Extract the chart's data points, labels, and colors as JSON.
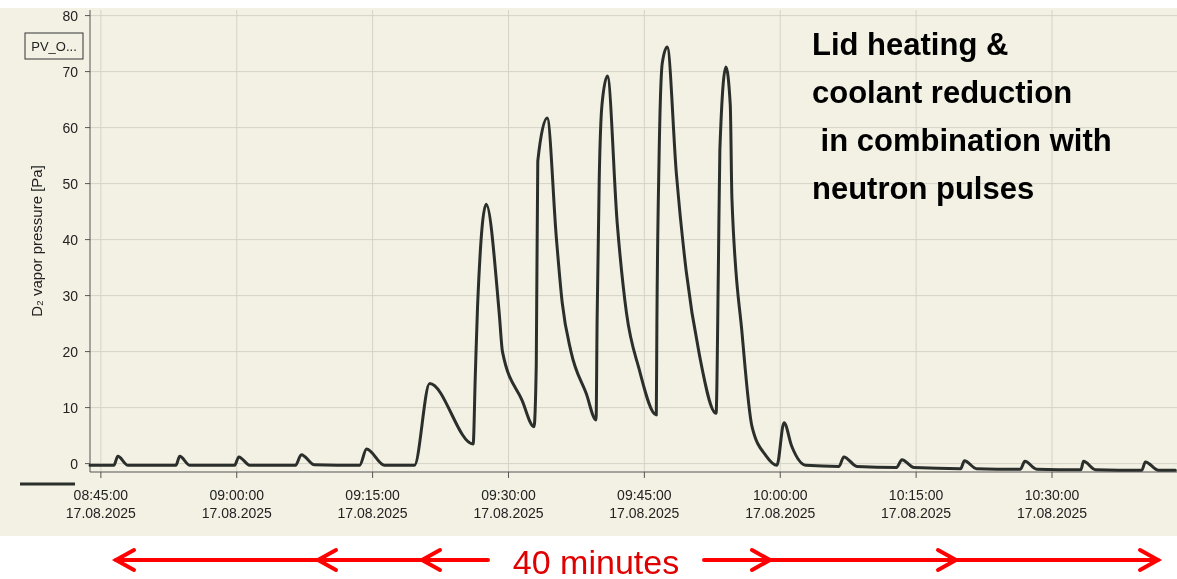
{
  "chart_data": {
    "type": "line",
    "ylabel": "D₂ vapor pressure [Pa]",
    "xlim": [
      "2025-08-17T08:43:48",
      "2025-08-17T10:43:48"
    ],
    "xticks": [
      {
        "value": "2025-08-17T08:45",
        "label": "08:45:00\n17.08.2025"
      },
      {
        "value": "2025-08-17T09:00",
        "label": "09:00:00\n17.08.2025"
      },
      {
        "value": "2025-08-17T09:15",
        "label": "09:15:00\n17.08.2025"
      },
      {
        "value": "2025-08-17T09:30",
        "label": "09:30:00\n17.08.2025"
      },
      {
        "value": "2025-08-17T09:45",
        "label": "09:45:00\n17.08.2025"
      },
      {
        "value": "2025-08-17T10:00",
        "label": "10:00:00\n17.08.2025"
      },
      {
        "value": "2025-08-17T10:15",
        "label": "10:15:00\n17.08.2025"
      },
      {
        "value": "2025-08-17T10:30",
        "label": "10:30:00\n17.08.2025"
      }
    ],
    "ylim": [
      -1.5,
      81
    ],
    "yticks": [
      0,
      10,
      20,
      30,
      40,
      50,
      60,
      70,
      80
    ],
    "grid": true,
    "legend": "top left",
    "line_style": "solid",
    "annotations": [
      "Lid heating &\ncoolant reduction\n in combination with\nneutron pulses",
      "40 minutes"
    ],
    "series": [
      {
        "name": "PV_O...",
        "color": "#2b2f2b",
        "x": [
          "2025-08-17T08:43:48",
          "2025-08-17T08:46:26",
          "2025-08-17T08:46:52",
          "2025-08-17T08:48:00",
          "2025-08-17T08:53:17",
          "2025-08-17T08:53:42",
          "2025-08-17T08:54:50",
          "2025-08-17T08:59:46",
          "2025-08-17T09:00:14",
          "2025-08-17T09:01:26",
          "2025-08-17T09:06:29",
          "2025-08-17T09:07:08",
          "2025-08-17T09:08:35",
          "2025-08-17T09:13:34",
          "2025-08-17T09:14:20",
          "2025-08-17T09:16:19",
          "2025-08-17T09:19:37",
          "2025-08-17T09:21:18",
          "2025-08-17T09:26:06",
          "2025-08-17T09:26:20",
          "2025-08-17T09:26:35",
          "2025-08-17T09:27:32",
          "2025-08-17T09:28:59",
          "2025-08-17T09:29:20",
          "2025-08-17T09:31:30",
          "2025-08-17T09:32:49",
          "2025-08-17T09:33:04",
          "2025-08-17T09:33:14",
          "2025-08-17T09:34:16",
          "2025-08-17T09:35:17",
          "2025-08-17T09:35:56",
          "2025-08-17T09:36:54",
          "2025-08-17T09:38:35",
          "2025-08-17T09:39:40",
          "2025-08-17T09:39:47",
          "2025-08-17T09:40:01",
          "2025-08-17T09:40:19",
          "2025-08-17T09:40:55",
          "2025-08-17T09:42:00",
          "2025-08-17T09:43:01",
          "2025-08-17T09:44:24",
          "2025-08-17T09:46:19",
          "2025-08-17T09:46:23",
          "2025-08-17T09:46:37",
          "2025-08-17T09:46:59",
          "2025-08-17T09:47:31",
          "2025-08-17T09:48:32",
          "2025-08-17T09:49:37",
          "2025-08-17T09:51:04",
          "2025-08-17T09:52:55",
          "2025-08-17T09:53:10",
          "2025-08-17T09:53:20",
          "2025-08-17T09:54:00",
          "2025-08-17T09:54:29",
          "2025-08-17T09:54:40",
          "2025-08-17T09:55:48",
          "2025-08-17T09:56:53",
          "2025-08-17T09:58:26",
          "2025-08-17T09:59:38",
          "2025-08-17T10:00:25",
          "2025-08-17T10:01:16",
          "2025-08-17T10:02:49",
          "2025-08-17T10:06:29",
          "2025-08-17T10:07:01",
          "2025-08-17T10:08:28",
          "2025-08-17T10:12:50",
          "2025-08-17T10:13:26",
          "2025-08-17T10:14:46",
          "2025-08-17T10:19:55",
          "2025-08-17T10:20:20",
          "2025-08-17T10:21:40",
          "2025-08-17T10:26:31",
          "2025-08-17T10:27:00",
          "2025-08-17T10:28:19",
          "2025-08-17T10:33:11",
          "2025-08-17T10:33:29",
          "2025-08-17T10:34:48",
          "2025-08-17T10:39:54",
          "2025-08-17T10:40:19",
          "2025-08-17T10:41:46",
          "2025-08-17T10:43:37"
        ],
        "values": [
          -0.3,
          -0.3,
          1.3,
          -0.3,
          -0.3,
          1.3,
          -0.3,
          -0.3,
          1.2,
          -0.3,
          -0.3,
          1.6,
          -0.2,
          -0.3,
          2.6,
          -0.3,
          -0.3,
          14.3,
          3.5,
          15.6,
          28,
          46.3,
          26.7,
          20,
          11.3,
          6.6,
          17.7,
          54,
          61.7,
          40.3,
          28.7,
          20,
          12.5,
          7.8,
          25.7,
          50.8,
          64,
          69.2,
          43,
          27,
          17,
          8.7,
          25.2,
          54,
          71.6,
          74.4,
          51.8,
          34.4,
          19.5,
          9,
          34.4,
          56,
          70.8,
          64,
          47.3,
          23,
          6.6,
          1.4,
          -0.3,
          7.3,
          3.1,
          -0.3,
          -0.5,
          1.2,
          -0.5,
          -0.7,
          0.7,
          -0.7,
          -0.9,
          0.5,
          -0.9,
          -1.0,
          0.4,
          -1.0,
          -1.1,
          0.4,
          -1.1,
          -1.2,
          0.3,
          -1.2,
          -1.2
        ]
      }
    ]
  }
}
